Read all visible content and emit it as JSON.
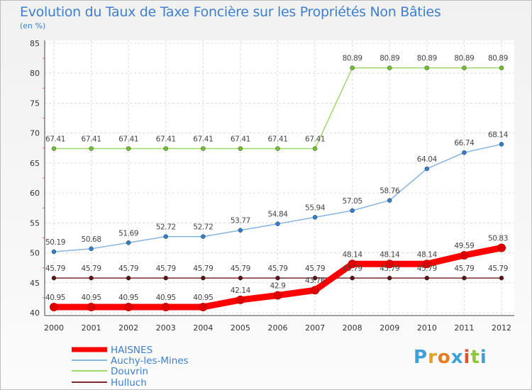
{
  "title": "Evolution du Taux de Taxe Foncière sur les Propriétés Non Bâties",
  "unit": "(en %)",
  "logo": {
    "letters": [
      "P",
      "r",
      "o",
      "x",
      "i",
      "t",
      "i"
    ],
    "colors": [
      "#3fa0d8",
      "#e8a020",
      "#e87c1e",
      "#3fa0d8",
      "#e05030",
      "#8cc63e",
      "#3fa0d8"
    ]
  },
  "chart_data": {
    "type": "line",
    "title": "Evolution du Taux de Taxe Foncière sur les Propriétés Non Bâties",
    "ylabel": "(en %)",
    "xlabel": "",
    "ylim": [
      40,
      85
    ],
    "yticks": [
      40,
      45,
      50,
      55,
      60,
      65,
      70,
      75,
      80,
      85
    ],
    "grid": true,
    "legend_position": "bottom-left",
    "categories": [
      "2000",
      "2001",
      "2002",
      "2003",
      "2004",
      "2005",
      "2006",
      "2007",
      "2008",
      "2009",
      "2010",
      "2011",
      "2012"
    ],
    "series": [
      {
        "name": "HAISNES",
        "color": "#ff0000",
        "dot": "#dd0000",
        "width": 9,
        "values": [
          40.95,
          40.95,
          40.95,
          40.95,
          40.95,
          42.14,
          42.9,
          43.76,
          48.14,
          48.14,
          48.14,
          49.59,
          50.83
        ],
        "labels": [
          "40.95",
          "40.95",
          "40.95",
          "40.95",
          "40.95",
          "42.14",
          "42.9",
          "43.76",
          "48.14",
          "48.14",
          "48.14",
          "49.59",
          "50.83"
        ]
      },
      {
        "name": "Auchy-les-Mines",
        "color": "#86b4e0",
        "dot": "#2f7fce",
        "width": 1.5,
        "values": [
          50.19,
          50.68,
          51.69,
          52.72,
          52.72,
          53.77,
          54.84,
          55.94,
          57.05,
          58.76,
          64.04,
          66.74,
          68.14
        ],
        "labels": [
          "50.19",
          "50.68",
          "51.69",
          "52.72",
          "52.72",
          "53.77",
          "54.84",
          "55.94",
          "57.05",
          "58.76",
          "64.04",
          "66.74",
          "68.14"
        ]
      },
      {
        "name": "Douvrin",
        "color": "#9ed96a",
        "dot": "#6fc22e",
        "width": 1.5,
        "values": [
          67.41,
          67.41,
          67.41,
          67.41,
          67.41,
          67.41,
          67.41,
          67.41,
          80.89,
          80.89,
          80.89,
          80.89,
          80.89
        ],
        "labels": [
          "67.41",
          "67.41",
          "67.41",
          "67.41",
          "67.41",
          "67.41",
          "67.41",
          "67.41",
          "80.89",
          "80.89",
          "80.89",
          "80.89",
          "80.89"
        ]
      },
      {
        "name": "Hulluch",
        "color": "#7a2c2c",
        "dot": "#5a1414",
        "width": 1.5,
        "values": [
          45.79,
          45.79,
          45.79,
          45.79,
          45.79,
          45.79,
          45.79,
          45.79,
          45.79,
          45.79,
          45.79,
          45.79,
          45.79
        ],
        "labels": [
          "45.79",
          "45.79",
          "45.79",
          "45.79",
          "45.79",
          "45.79",
          "45.79",
          "45.79",
          "45.79",
          "45.79",
          "45.79",
          "45.79",
          "45.79"
        ]
      }
    ]
  }
}
